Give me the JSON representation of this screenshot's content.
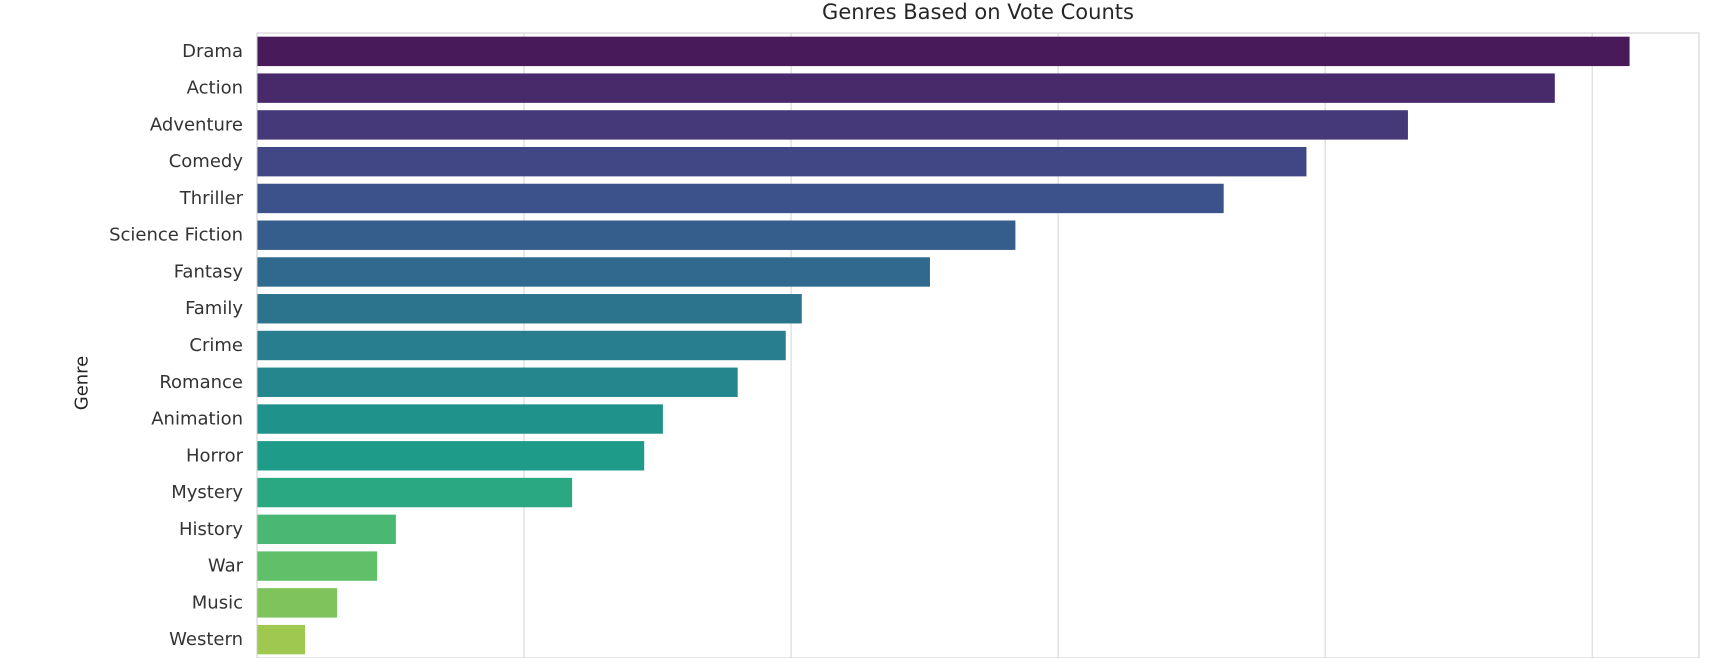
{
  "chart_data": {
    "type": "bar",
    "orientation": "horizontal",
    "title": "Genres Based on Vote Counts",
    "xlabel": "",
    "ylabel": "Genre",
    "xlim": [
      0,
      5.4
    ],
    "x_gridlines": [
      1,
      2,
      3,
      4,
      5
    ],
    "grid": true,
    "x_tick_labels_visible": false,
    "categories": [
      "Drama",
      "Action",
      "Adventure",
      "Comedy",
      "Thriller",
      "Science Fiction",
      "Fantasy",
      "Family",
      "Crime",
      "Romance",
      "Animation",
      "Horror",
      "Mystery",
      "History",
      "War",
      "Music",
      "Western"
    ],
    "values": [
      5.14,
      4.86,
      4.31,
      3.93,
      3.62,
      2.84,
      2.52,
      2.04,
      1.98,
      1.8,
      1.52,
      1.45,
      1.18,
      0.52,
      0.45,
      0.3,
      0.18
    ],
    "colors": [
      "#481a5a",
      "#482a6b",
      "#453979",
      "#404784",
      "#3b528b",
      "#355e8d",
      "#30698e",
      "#2c738e",
      "#287e8e",
      "#24878e",
      "#20928c",
      "#1f9c89",
      "#2aa882",
      "#48b873",
      "#60c06a",
      "#7ec45a",
      "#9ec850"
    ]
  }
}
